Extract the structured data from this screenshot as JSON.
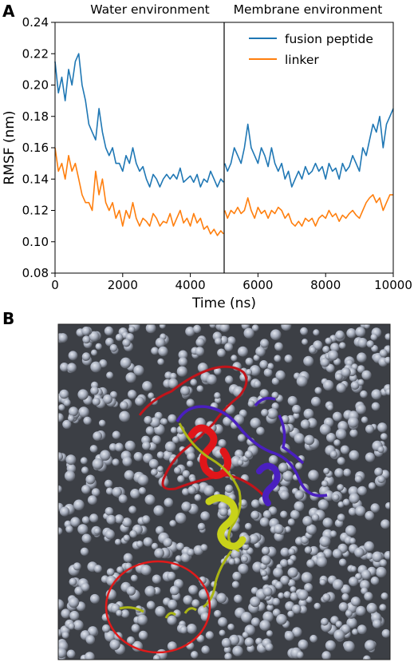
{
  "panel_a_label": "A",
  "panel_b_label": "B",
  "environments": {
    "water": "Water environment",
    "membrane": "Membrane environment"
  },
  "colors": {
    "fusion_peptide": "#1f77b4",
    "linker": "#ff7f0e",
    "split_line": "#000000",
    "membrane_beads": "#9aa2b1",
    "membrane_shadow": "#3c3f45",
    "protein_red": "#e0161a",
    "protein_purple": "#4a1fbf",
    "protein_yellow": "#c8d21a",
    "highlight_circle": "#e01a1a"
  },
  "chart_data": {
    "type": "line",
    "xlabel": "Time (ns)",
    "ylabel": "RMSF (nm)",
    "xlim": [
      0,
      10000
    ],
    "ylim": [
      0.08,
      0.24
    ],
    "xticks": [
      "0",
      "2000",
      "4000",
      "6000",
      "8000",
      "10000"
    ],
    "yticks": [
      "0.08",
      "0.10",
      "0.12",
      "0.14",
      "0.16",
      "0.18",
      "0.20",
      "0.22",
      "0.24"
    ],
    "split_x": 5000,
    "legend_position": "top-right",
    "series": [
      {
        "name": "fusion peptide",
        "color": "#1f77b4",
        "points": [
          [
            0,
            0.215
          ],
          [
            100,
            0.195
          ],
          [
            200,
            0.205
          ],
          [
            300,
            0.19
          ],
          [
            400,
            0.21
          ],
          [
            500,
            0.2
          ],
          [
            600,
            0.215
          ],
          [
            700,
            0.22
          ],
          [
            800,
            0.2
          ],
          [
            900,
            0.19
          ],
          [
            1000,
            0.175
          ],
          [
            1100,
            0.17
          ],
          [
            1200,
            0.165
          ],
          [
            1300,
            0.185
          ],
          [
            1400,
            0.17
          ],
          [
            1500,
            0.16
          ],
          [
            1600,
            0.155
          ],
          [
            1700,
            0.16
          ],
          [
            1800,
            0.15
          ],
          [
            1900,
            0.15
          ],
          [
            2000,
            0.145
          ],
          [
            2100,
            0.155
          ],
          [
            2200,
            0.15
          ],
          [
            2300,
            0.16
          ],
          [
            2400,
            0.15
          ],
          [
            2500,
            0.145
          ],
          [
            2600,
            0.148
          ],
          [
            2700,
            0.14
          ],
          [
            2800,
            0.135
          ],
          [
            2900,
            0.143
          ],
          [
            3000,
            0.14
          ],
          [
            3100,
            0.135
          ],
          [
            3200,
            0.14
          ],
          [
            3300,
            0.143
          ],
          [
            3400,
            0.14
          ],
          [
            3500,
            0.143
          ],
          [
            3600,
            0.14
          ],
          [
            3700,
            0.147
          ],
          [
            3800,
            0.138
          ],
          [
            3900,
            0.14
          ],
          [
            4000,
            0.142
          ],
          [
            4100,
            0.138
          ],
          [
            4200,
            0.143
          ],
          [
            4300,
            0.135
          ],
          [
            4400,
            0.14
          ],
          [
            4500,
            0.138
          ],
          [
            4600,
            0.145
          ],
          [
            4700,
            0.14
          ],
          [
            4800,
            0.135
          ],
          [
            4900,
            0.14
          ],
          [
            4980,
            0.138
          ]
        ]
      },
      {
        "name": "fusion peptide",
        "color": "#1f77b4",
        "points": [
          [
            5020,
            0.15
          ],
          [
            5100,
            0.145
          ],
          [
            5200,
            0.15
          ],
          [
            5300,
            0.16
          ],
          [
            5400,
            0.155
          ],
          [
            5500,
            0.15
          ],
          [
            5600,
            0.16
          ],
          [
            5700,
            0.175
          ],
          [
            5800,
            0.16
          ],
          [
            5900,
            0.155
          ],
          [
            6000,
            0.15
          ],
          [
            6100,
            0.16
          ],
          [
            6200,
            0.155
          ],
          [
            6300,
            0.148
          ],
          [
            6400,
            0.16
          ],
          [
            6500,
            0.15
          ],
          [
            6600,
            0.145
          ],
          [
            6700,
            0.15
          ],
          [
            6800,
            0.14
          ],
          [
            6900,
            0.145
          ],
          [
            7000,
            0.135
          ],
          [
            7100,
            0.14
          ],
          [
            7200,
            0.145
          ],
          [
            7300,
            0.14
          ],
          [
            7400,
            0.148
          ],
          [
            7500,
            0.143
          ],
          [
            7600,
            0.145
          ],
          [
            7700,
            0.15
          ],
          [
            7800,
            0.145
          ],
          [
            7900,
            0.148
          ],
          [
            8000,
            0.14
          ],
          [
            8100,
            0.15
          ],
          [
            8200,
            0.145
          ],
          [
            8300,
            0.147
          ],
          [
            8400,
            0.14
          ],
          [
            8500,
            0.15
          ],
          [
            8600,
            0.145
          ],
          [
            8700,
            0.148
          ],
          [
            8800,
            0.155
          ],
          [
            8900,
            0.15
          ],
          [
            9000,
            0.145
          ],
          [
            9100,
            0.16
          ],
          [
            9200,
            0.155
          ],
          [
            9300,
            0.165
          ],
          [
            9400,
            0.175
          ],
          [
            9500,
            0.17
          ],
          [
            9600,
            0.18
          ],
          [
            9700,
            0.16
          ],
          [
            9800,
            0.175
          ],
          [
            9900,
            0.18
          ],
          [
            10000,
            0.185
          ]
        ]
      },
      {
        "name": "linker",
        "color": "#ff7f0e",
        "points": [
          [
            0,
            0.16
          ],
          [
            100,
            0.145
          ],
          [
            200,
            0.15
          ],
          [
            300,
            0.14
          ],
          [
            400,
            0.155
          ],
          [
            500,
            0.145
          ],
          [
            600,
            0.15
          ],
          [
            700,
            0.14
          ],
          [
            800,
            0.13
          ],
          [
            900,
            0.125
          ],
          [
            1000,
            0.125
          ],
          [
            1100,
            0.12
          ],
          [
            1200,
            0.145
          ],
          [
            1300,
            0.13
          ],
          [
            1400,
            0.14
          ],
          [
            1500,
            0.125
          ],
          [
            1600,
            0.12
          ],
          [
            1700,
            0.125
          ],
          [
            1800,
            0.115
          ],
          [
            1900,
            0.12
          ],
          [
            2000,
            0.11
          ],
          [
            2100,
            0.12
          ],
          [
            2200,
            0.115
          ],
          [
            2300,
            0.125
          ],
          [
            2400,
            0.115
          ],
          [
            2500,
            0.11
          ],
          [
            2600,
            0.115
          ],
          [
            2700,
            0.113
          ],
          [
            2800,
            0.11
          ],
          [
            2900,
            0.118
          ],
          [
            3000,
            0.115
          ],
          [
            3100,
            0.11
          ],
          [
            3200,
            0.113
          ],
          [
            3300,
            0.112
          ],
          [
            3400,
            0.118
          ],
          [
            3500,
            0.11
          ],
          [
            3600,
            0.115
          ],
          [
            3700,
            0.12
          ],
          [
            3800,
            0.112
          ],
          [
            3900,
            0.115
          ],
          [
            4000,
            0.11
          ],
          [
            4100,
            0.118
          ],
          [
            4200,
            0.112
          ],
          [
            4300,
            0.115
          ],
          [
            4400,
            0.108
          ],
          [
            4500,
            0.11
          ],
          [
            4600,
            0.105
          ],
          [
            4700,
            0.108
          ],
          [
            4800,
            0.104
          ],
          [
            4900,
            0.107
          ],
          [
            4980,
            0.105
          ]
        ]
      },
      {
        "name": "linker",
        "color": "#ff7f0e",
        "points": [
          [
            5020,
            0.12
          ],
          [
            5100,
            0.115
          ],
          [
            5200,
            0.12
          ],
          [
            5300,
            0.118
          ],
          [
            5400,
            0.122
          ],
          [
            5500,
            0.118
          ],
          [
            5600,
            0.12
          ],
          [
            5700,
            0.128
          ],
          [
            5800,
            0.12
          ],
          [
            5900,
            0.115
          ],
          [
            6000,
            0.122
          ],
          [
            6100,
            0.118
          ],
          [
            6200,
            0.12
          ],
          [
            6300,
            0.115
          ],
          [
            6400,
            0.12
          ],
          [
            6500,
            0.118
          ],
          [
            6600,
            0.122
          ],
          [
            6700,
            0.12
          ],
          [
            6800,
            0.115
          ],
          [
            6900,
            0.118
          ],
          [
            7000,
            0.112
          ],
          [
            7100,
            0.11
          ],
          [
            7200,
            0.113
          ],
          [
            7300,
            0.11
          ],
          [
            7400,
            0.115
          ],
          [
            7500,
            0.113
          ],
          [
            7600,
            0.115
          ],
          [
            7700,
            0.11
          ],
          [
            7800,
            0.115
          ],
          [
            7900,
            0.117
          ],
          [
            8000,
            0.115
          ],
          [
            8100,
            0.12
          ],
          [
            8200,
            0.116
          ],
          [
            8300,
            0.118
          ],
          [
            8400,
            0.113
          ],
          [
            8500,
            0.117
          ],
          [
            8600,
            0.115
          ],
          [
            8700,
            0.118
          ],
          [
            8800,
            0.12
          ],
          [
            8900,
            0.117
          ],
          [
            9000,
            0.115
          ],
          [
            9100,
            0.12
          ],
          [
            9200,
            0.125
          ],
          [
            9300,
            0.128
          ],
          [
            9400,
            0.13
          ],
          [
            9500,
            0.125
          ],
          [
            9600,
            0.128
          ],
          [
            9700,
            0.12
          ],
          [
            9800,
            0.125
          ],
          [
            9900,
            0.13
          ],
          [
            10000,
            0.13
          ]
        ]
      }
    ]
  }
}
